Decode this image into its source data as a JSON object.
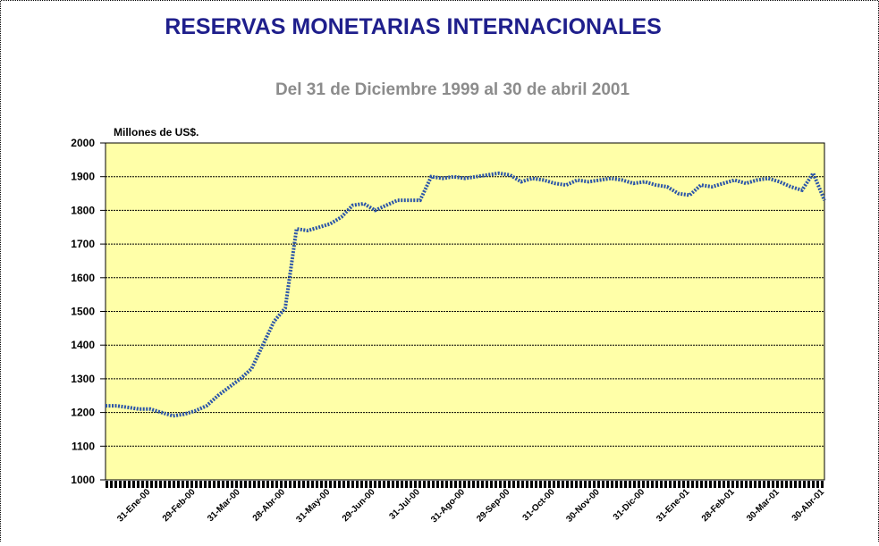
{
  "chart_data": {
    "type": "line",
    "title": "RESERVAS MONETARIAS INTERNACIONALES",
    "subtitle": "Del 31 de Diciembre  1999 al 30 de abril 2001",
    "y_label": "Millones de US$.",
    "color": "#2b55a8",
    "plot_background": "#ffffa8",
    "grid": true,
    "ylim": [
      1000,
      2000
    ],
    "yticks": [
      1000,
      1100,
      1200,
      1300,
      1400,
      1500,
      1600,
      1700,
      1800,
      1900,
      2000
    ],
    "categories": [
      null,
      null,
      null,
      null,
      "31-Ene-00",
      null,
      null,
      null,
      "29-Feb-00",
      null,
      null,
      null,
      "31-Mar-00",
      null,
      null,
      null,
      "28-Abr-00",
      null,
      null,
      null,
      "31-May-00",
      null,
      null,
      null,
      "29-Jun-00",
      null,
      null,
      null,
      "31-Jul-00",
      null,
      null,
      null,
      "31-Ago-00",
      null,
      null,
      null,
      "29-Sep-00",
      null,
      null,
      null,
      "31-Oct-00",
      null,
      null,
      null,
      "30-Nov-00",
      null,
      null,
      null,
      "31-Dic-00",
      null,
      null,
      null,
      "31-Ene-01",
      null,
      null,
      null,
      "28-Feb-01",
      null,
      null,
      null,
      "30-Mar-01",
      null,
      null,
      null,
      "30-Abr-01"
    ],
    "values": [
      1220,
      1220,
      1215,
      1210,
      1210,
      1200,
      1190,
      1195,
      1205,
      1220,
      1250,
      1275,
      1300,
      1330,
      1400,
      1470,
      1510,
      1745,
      1740,
      1750,
      1760,
      1780,
      1815,
      1820,
      1800,
      1815,
      1830,
      1830,
      1830,
      1900,
      1895,
      1900,
      1895,
      1900,
      1905,
      1910,
      1905,
      1885,
      1895,
      1890,
      1880,
      1875,
      1890,
      1885,
      1890,
      1895,
      1890,
      1880,
      1885,
      1875,
      1870,
      1850,
      1845,
      1875,
      1870,
      1880,
      1890,
      1880,
      1890,
      1895,
      1885,
      1870,
      1860,
      1910,
      1830
    ]
  }
}
